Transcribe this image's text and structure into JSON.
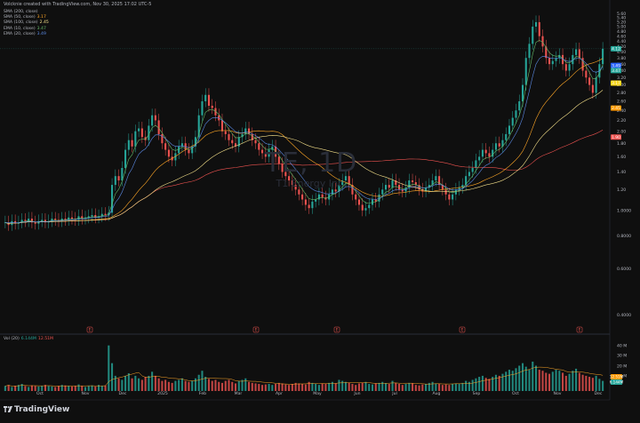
{
  "header": {
    "credit": "Volcknie created with TradingView.com, Nov 30, 2025 17:02 UTC-5"
  },
  "indicators": [
    {
      "label": "SMA (200, close)",
      "value": "",
      "color": "#ef5350"
    },
    {
      "label": "SMA (50, close)",
      "value": "3.17",
      "color": "#ffa726"
    },
    {
      "label": "SMA (100, close)",
      "value": "2.45",
      "color": "#f5e08a"
    },
    {
      "label": "EMA (10, close)",
      "value": "3.47",
      "color": "#66bb6a"
    },
    {
      "label": "EMA (20, close)",
      "value": "3.49",
      "color": "#5c8be6"
    }
  ],
  "watermark": {
    "symbol": "TE, 1D",
    "name": "T1 Energy Inc."
  },
  "volume": {
    "label": "Vol (20)",
    "value1": "6.144M",
    "value2": "12.51M"
  },
  "brand": {
    "name": "TradingView"
  },
  "chart_data": {
    "type": "candlestick",
    "scale": "log",
    "price_axis_ticks": [
      "5.60",
      "5.40",
      "5.20",
      "5.00",
      "4.80",
      "4.60",
      "4.40",
      "4.20",
      "4.00",
      "3.80",
      "3.60",
      "3.40",
      "3.20",
      "3.00",
      "2.80",
      "2.60",
      "2.40",
      "2.20",
      "2.00",
      "1.80",
      "1.60",
      "1.40",
      "1.20",
      "1.0000",
      "0.8000",
      "0.6000",
      "0.4000"
    ],
    "time_axis_ticks": [
      "Oct",
      "Nov",
      "Dec",
      "2025",
      "Feb",
      "Mar",
      "Apr",
      "May",
      "Jun",
      "Jul",
      "Aug",
      "Sep",
      "Oct",
      "Nov",
      "Dec"
    ],
    "volume_axis_ticks": [
      "40 M",
      "30 M",
      "20 M",
      "10 M"
    ],
    "price_labels": [
      {
        "text": "4.12",
        "color": "#26a69a"
      },
      {
        "text": "3.49",
        "color": "#2962ff"
      },
      {
        "text": "3.47",
        "color": "#26a69a"
      },
      {
        "text": "3.17",
        "color": "#f9d71c"
      },
      {
        "text": "2.45",
        "color": "#ff9800"
      },
      {
        "text": "1.90",
        "color": "#ef5350"
      }
    ],
    "volume_labels": [
      {
        "text": "12.51M",
        "color": "#ff9800"
      },
      {
        "text": "6.144M",
        "color": "#26a69a"
      }
    ],
    "event_markers": [
      "E",
      "E",
      "E",
      "E",
      "E"
    ],
    "ohlc_close_path": [
      0.9,
      0.88,
      0.91,
      0.89,
      0.9,
      0.92,
      0.91,
      0.93,
      0.9,
      0.89,
      0.91,
      0.92,
      0.9,
      0.91,
      0.93,
      0.92,
      0.91,
      0.93,
      0.92,
      0.94,
      0.93,
      0.92,
      0.95,
      0.93,
      0.94,
      0.95,
      0.96,
      0.94,
      0.95,
      0.97,
      0.96,
      0.98,
      1.25,
      1.35,
      1.3,
      1.45,
      1.7,
      1.85,
      1.75,
      2.0,
      2.05,
      1.9,
      1.85,
      2.1,
      2.3,
      2.2,
      1.95,
      1.8,
      1.7,
      1.6,
      1.55,
      1.65,
      1.75,
      1.8,
      1.7,
      1.65,
      1.75,
      1.9,
      2.3,
      2.6,
      2.75,
      2.5,
      2.45,
      2.3,
      2.2,
      2.0,
      1.95,
      1.85,
      1.8,
      1.75,
      1.9,
      1.95,
      2.05,
      1.95,
      1.85,
      1.8,
      1.7,
      1.65,
      1.6,
      1.7,
      1.75,
      1.6,
      1.5,
      1.4,
      1.35,
      1.3,
      1.25,
      1.2,
      1.15,
      1.1,
      1.05,
      1.02,
      1.08,
      1.1,
      1.15,
      1.12,
      1.1,
      1.15,
      1.2,
      1.18,
      1.25,
      1.3,
      1.35,
      1.25,
      1.15,
      1.1,
      1.05,
      1.0,
      1.02,
      1.05,
      1.1,
      1.08,
      1.15,
      1.2,
      1.25,
      1.22,
      1.3,
      1.25,
      1.2,
      1.18,
      1.22,
      1.3,
      1.28,
      1.25,
      1.2,
      1.18,
      1.22,
      1.25,
      1.3,
      1.35,
      1.25,
      1.2,
      1.15,
      1.1,
      1.15,
      1.2,
      1.22,
      1.25,
      1.35,
      1.4,
      1.45,
      1.55,
      1.6,
      1.7,
      1.65,
      1.6,
      1.7,
      1.8,
      1.75,
      1.85,
      1.95,
      2.1,
      2.25,
      2.4,
      2.6,
      3.0,
      3.8,
      4.3,
      5.0,
      5.2,
      4.6,
      4.2,
      3.8,
      3.6,
      3.7,
      3.8,
      3.9,
      3.6,
      3.4,
      3.6,
      3.9,
      4.1,
      3.8,
      3.4,
      3.2,
      3.0,
      2.8,
      3.2,
      3.6,
      4.12
    ],
    "volume_relative": [
      0.1,
      0.12,
      0.08,
      0.1,
      0.12,
      0.14,
      0.1,
      0.08,
      0.11,
      0.1,
      0.09,
      0.1,
      0.12,
      0.1,
      0.09,
      0.08,
      0.1,
      0.12,
      0.11,
      0.1,
      0.09,
      0.1,
      0.13,
      0.1,
      0.08,
      0.1,
      0.11,
      0.09,
      0.12,
      0.1,
      0.11,
      0.9,
      0.55,
      0.3,
      0.25,
      0.22,
      0.3,
      0.35,
      0.25,
      0.3,
      0.25,
      0.22,
      0.28,
      0.3,
      0.38,
      0.3,
      0.25,
      0.2,
      0.22,
      0.18,
      0.16,
      0.2,
      0.22,
      0.25,
      0.2,
      0.18,
      0.2,
      0.25,
      0.32,
      0.4,
      0.28,
      0.24,
      0.2,
      0.22,
      0.18,
      0.16,
      0.2,
      0.22,
      0.18,
      0.15,
      0.2,
      0.22,
      0.25,
      0.18,
      0.16,
      0.15,
      0.14,
      0.12,
      0.13,
      0.14,
      0.12,
      0.14,
      0.16,
      0.15,
      0.13,
      0.12,
      0.14,
      0.16,
      0.15,
      0.14,
      0.13,
      0.18,
      0.16,
      0.14,
      0.12,
      0.15,
      0.14,
      0.16,
      0.18,
      0.15,
      0.22,
      0.2,
      0.18,
      0.16,
      0.14,
      0.12,
      0.15,
      0.16,
      0.18,
      0.14,
      0.13,
      0.15,
      0.16,
      0.18,
      0.15,
      0.14,
      0.2,
      0.16,
      0.14,
      0.12,
      0.14,
      0.16,
      0.15,
      0.12,
      0.11,
      0.13,
      0.14,
      0.16,
      0.18,
      0.15,
      0.14,
      0.12,
      0.13,
      0.12,
      0.14,
      0.15,
      0.14,
      0.16,
      0.2,
      0.18,
      0.22,
      0.25,
      0.28,
      0.3,
      0.26,
      0.24,
      0.28,
      0.32,
      0.3,
      0.34,
      0.38,
      0.42,
      0.4,
      0.45,
      0.5,
      0.55,
      0.48,
      0.42,
      0.58,
      0.5,
      0.42,
      0.4,
      0.36,
      0.34,
      0.38,
      0.42,
      0.4,
      0.36,
      0.3,
      0.34,
      0.4,
      0.44,
      0.36,
      0.32,
      0.3,
      0.28,
      0.26,
      0.3,
      0.24,
      0.2
    ]
  }
}
